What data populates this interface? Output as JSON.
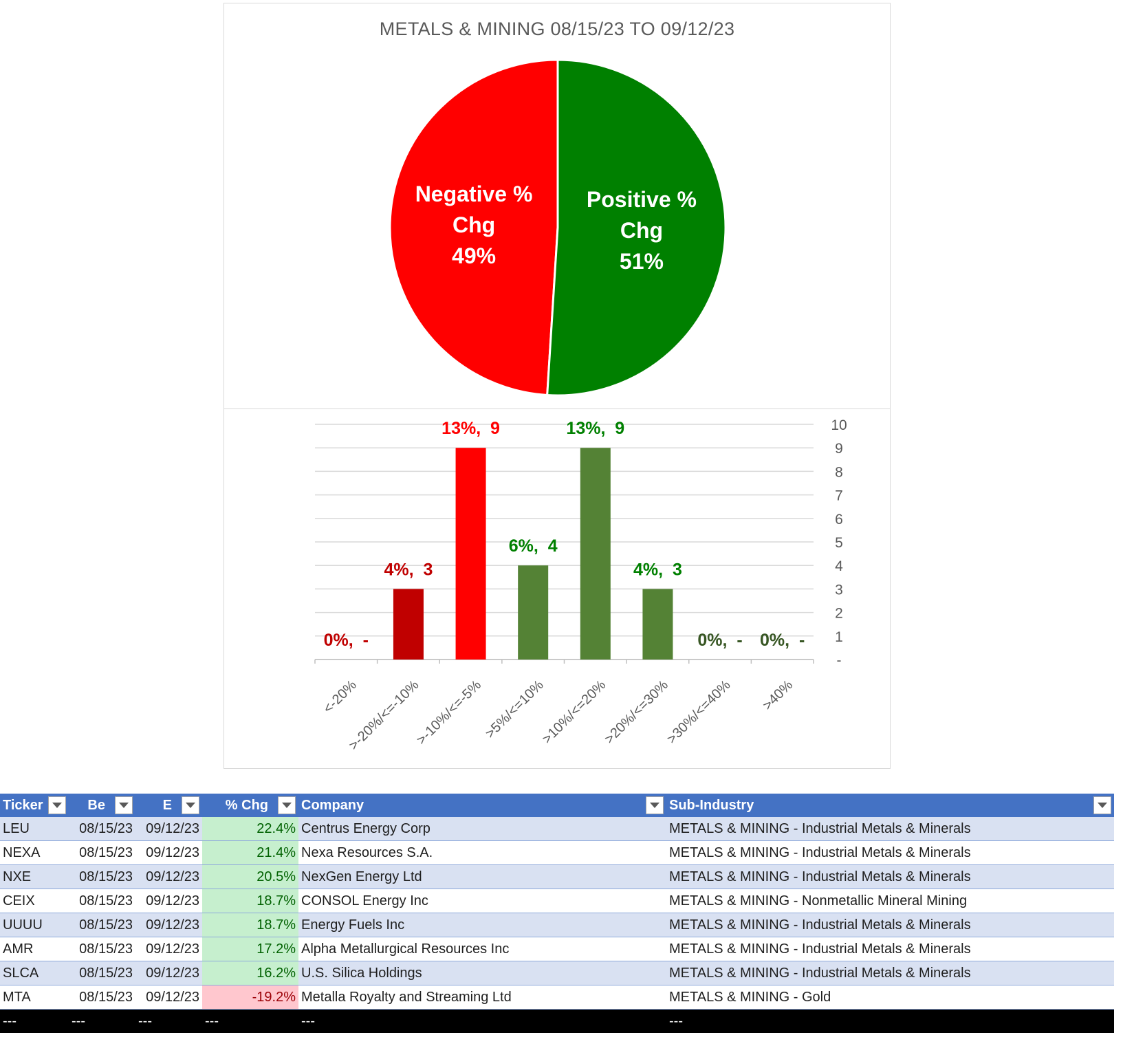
{
  "chart_data": [
    {
      "type": "pie",
      "title": "METALS & MINING 08/15/23 TO 09/12/23",
      "slices": [
        {
          "label": "Negative % Chg",
          "value": 49,
          "display": "49%",
          "color": "#ff0000"
        },
        {
          "label": "Positive % Chg",
          "value": 51,
          "display": "51%",
          "color": "#008000"
        }
      ],
      "legend": "none"
    },
    {
      "type": "bar",
      "categories": [
        "<-20%",
        ">-20%/<=-10%",
        ">-10%/<=-5%",
        ">5%/<=10%",
        ">10%/<=20%",
        ">20%/<=30%",
        ">30%/<=40%",
        ">40%"
      ],
      "values": [
        0,
        3,
        9,
        4,
        9,
        3,
        0,
        0
      ],
      "data_labels": [
        "0%,  -",
        "4%,  3",
        "13%,  9",
        "6%,  4",
        "13%,  9",
        "4%,  3",
        "0%,  -",
        "0%,  -"
      ],
      "bar_colors": [
        "#c00000",
        "#c00000",
        "#ff0000",
        "#548235",
        "#548235",
        "#548235",
        "#548235",
        "#548235"
      ],
      "label_colors": [
        "#c00000",
        "#c00000",
        "#ff0000",
        "#008000",
        "#008000",
        "#008000",
        "#375623",
        "#375623"
      ],
      "y_ticks": [
        "-",
        "1",
        "2",
        "3",
        "4",
        "5",
        "6",
        "7",
        "8",
        "9",
        "10"
      ],
      "ylim": [
        0,
        10
      ],
      "y_axis_side": "right",
      "grid": true,
      "legend": "none"
    }
  ],
  "table": {
    "headers": [
      "Ticker",
      "Be",
      "E",
      "% Chg",
      "Company",
      "Sub-Industry"
    ],
    "rows": [
      [
        "LEU",
        "08/15/23",
        "09/12/23",
        "22.4%",
        "Centrus Energy Corp",
        "METALS & MINING - Industrial Metals & Minerals"
      ],
      [
        "NEXA",
        "08/15/23",
        "09/12/23",
        "21.4%",
        "Nexa Resources S.A.",
        "METALS & MINING - Industrial Metals & Minerals"
      ],
      [
        "NXE",
        "08/15/23",
        "09/12/23",
        "20.5%",
        "NexGen Energy Ltd",
        "METALS & MINING - Industrial Metals & Minerals"
      ],
      [
        "CEIX",
        "08/15/23",
        "09/12/23",
        "18.7%",
        "CONSOL Energy Inc",
        "METALS & MINING - Nonmetallic Mineral Mining"
      ],
      [
        "UUUU",
        "08/15/23",
        "09/12/23",
        "18.7%",
        "Energy Fuels Inc",
        "METALS & MINING - Industrial Metals & Minerals"
      ],
      [
        "AMR",
        "08/15/23",
        "09/12/23",
        "17.2%",
        "Alpha Metallurgical Resources Inc",
        "METALS & MINING - Industrial Metals & Minerals"
      ],
      [
        "SLCA",
        "08/15/23",
        "09/12/23",
        "16.2%",
        "U.S. Silica Holdings",
        "METALS & MINING - Industrial Metals & Minerals"
      ],
      [
        "MTA",
        "08/15/23",
        "09/12/23",
        "-19.2%",
        "Metalla Royalty and Streaming Ltd",
        "METALS & MINING - Gold"
      ]
    ],
    "total_row": [
      "---",
      "---",
      "---",
      "---",
      "---",
      "---"
    ],
    "colors": {
      "header": "#4472c4",
      "band": "#d9e1f2",
      "positive": "#c6efce",
      "negative": "#ffc7ce"
    }
  }
}
